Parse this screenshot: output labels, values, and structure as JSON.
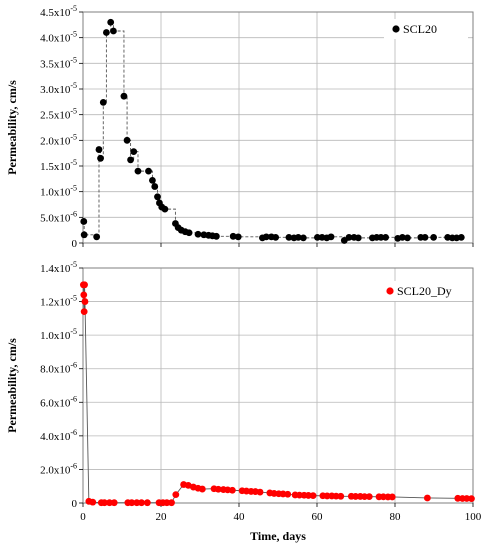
{
  "chart_data": [
    {
      "type": "scatter",
      "grid": true,
      "legend_position": "top-right",
      "ylabel": "Permeability, cm/s",
      "xlabel": "",
      "xlim": [
        0,
        100
      ],
      "ylim": [
        0,
        4.5e-05
      ],
      "y_ticks": [
        {
          "value": 0,
          "label": "0"
        },
        {
          "value": 5e-06,
          "label": "5.0x10",
          "exp": "-6"
        },
        {
          "value": 1e-05,
          "label": "1.0x10",
          "exp": "-5"
        },
        {
          "value": 1.5e-05,
          "label": "1.5x10",
          "exp": "-5"
        },
        {
          "value": 2e-05,
          "label": "2.0x10",
          "exp": "-5"
        },
        {
          "value": 2.5e-05,
          "label": "2.5x10",
          "exp": "-5"
        },
        {
          "value": 3e-05,
          "label": "3.0x10",
          "exp": "-5"
        },
        {
          "value": 3.5e-05,
          "label": "3.5x10",
          "exp": "-5"
        },
        {
          "value": 4e-05,
          "label": "4.0x10",
          "exp": "-5"
        },
        {
          "value": 4.5e-05,
          "label": "4.5x10",
          "exp": "-5"
        }
      ],
      "x_ticks": [
        0,
        20,
        40,
        60,
        80,
        100
      ],
      "line_style": "dashed-step",
      "series": [
        {
          "name": "SCL20",
          "color": "#000000",
          "x": [
            0.2,
            0.3,
            3.5,
            4.1,
            4.5,
            5.2,
            6.0,
            7.1,
            7.8,
            10.5,
            11.3,
            12.2,
            13.0,
            14.1,
            16.8,
            17.8,
            18.4,
            19.1,
            19.6,
            20.2,
            21.0,
            23.7,
            24.4,
            25.2,
            26.2,
            27.2,
            29.5,
            31.0,
            32.2,
            33.2,
            34.2,
            38.5,
            39.8,
            46.0,
            47.0,
            48.3,
            49.4,
            52.8,
            54.1,
            55.2,
            56.5,
            60.1,
            61.3,
            62.5,
            63.6,
            67.0,
            68.2,
            69.5,
            70.6,
            74.2,
            75.3,
            76.4,
            77.6,
            80.7,
            81.9,
            83.2,
            86.6,
            87.7,
            89.9,
            93.5,
            94.7,
            95.8,
            97.0
          ],
          "y": [
            4.2e-06,
            1.6e-06,
            1.2e-06,
            1.82e-05,
            1.65e-05,
            2.74e-05,
            4.1e-05,
            4.3e-05,
            4.13e-05,
            2.86e-05,
            2e-05,
            1.62e-05,
            1.78e-05,
            1.4e-05,
            1.4e-05,
            1.22e-05,
            1.1e-05,
            9e-06,
            7.8e-06,
            7e-06,
            6.6e-06,
            3.8e-06,
            3e-06,
            2.5e-06,
            2.2e-06,
            2e-06,
            1.7e-06,
            1.6e-06,
            1.5e-06,
            1.4e-06,
            1.3e-06,
            1.3e-06,
            1.2e-06,
            1e-06,
            1.2e-06,
            1.2e-06,
            1.1e-06,
            1.1e-06,
            1e-06,
            1.1e-06,
            1e-06,
            1.1e-06,
            1.1e-06,
            1e-06,
            1.2e-06,
            5e-07,
            1.1e-06,
            1.1e-06,
            1e-06,
            1e-06,
            1.1e-06,
            1.1e-06,
            1.1e-06,
            9e-07,
            1.1e-06,
            1e-06,
            1.1e-06,
            1.1e-06,
            1.1e-06,
            1.1e-06,
            1e-06,
            1e-06,
            1.1e-06
          ]
        }
      ]
    },
    {
      "type": "scatter",
      "grid": true,
      "legend_position": "top-right",
      "ylabel": "Permeability, cm/s",
      "xlabel": "Time, days",
      "xlim": [
        0,
        100
      ],
      "ylim": [
        0,
        1.4e-05
      ],
      "y_ticks": [
        {
          "value": 0,
          "label": "0"
        },
        {
          "value": 2e-06,
          "label": "2.0x10",
          "exp": "-6"
        },
        {
          "value": 4e-06,
          "label": "4.0x10",
          "exp": "-6"
        },
        {
          "value": 6e-06,
          "label": "6.0x10",
          "exp": "-6"
        },
        {
          "value": 8e-06,
          "label": "8.0x10",
          "exp": "-6"
        },
        {
          "value": 1e-05,
          "label": "1.0x10",
          "exp": "-5"
        },
        {
          "value": 1.2e-05,
          "label": "1.2x10",
          "exp": "-5"
        },
        {
          "value": 1.4e-05,
          "label": "1.4x10",
          "exp": "-5"
        }
      ],
      "x_ticks": [
        0,
        20,
        40,
        60,
        80,
        100
      ],
      "line_style": "solid",
      "series": [
        {
          "name": "SCL20_Dy",
          "color": "#ff0000",
          "x": [
            0.1,
            0.2,
            0.3,
            0.4,
            0.5,
            1.5,
            2.5,
            4.7,
            5.5,
            6.8,
            8.0,
            11.5,
            12.5,
            13.8,
            15.0,
            16.5,
            19.5,
            20.5,
            21.5,
            22.7,
            23.8,
            25.8,
            27.0,
            28.3,
            29.5,
            30.6,
            33.6,
            34.7,
            36.0,
            37.1,
            38.3,
            40.8,
            41.9,
            43.1,
            44.2,
            45.4,
            47.9,
            49.0,
            50.2,
            51.3,
            52.5,
            54.4,
            55.5,
            56.7,
            57.8,
            59.0,
            61.5,
            62.6,
            63.8,
            64.9,
            66.1,
            68.8,
            69.9,
            71.1,
            72.2,
            73.4,
            75.9,
            77.0,
            78.2,
            79.3,
            88.3,
            96.1,
            97.3,
            98.4,
            99.6
          ],
          "y": [
            1.3e-05,
            1.24e-05,
            1.14e-05,
            1.3e-05,
            1.2e-05,
            1e-07,
            5e-08,
            2e-08,
            2e-08,
            2e-08,
            2e-08,
            2e-08,
            2e-08,
            2e-08,
            2e-08,
            2e-08,
            2e-08,
            2e-08,
            2e-08,
            2e-08,
            5e-07,
            1.1e-06,
            1.05e-06,
            9.5e-07,
            8.8e-07,
            8.3e-07,
            8.5e-07,
            8.2e-07,
            8e-07,
            7.8e-07,
            7.6e-07,
            7.3e-07,
            7.1e-07,
            6.9e-07,
            6.8e-07,
            6.5e-07,
            6e-07,
            5.7e-07,
            5.5e-07,
            5.4e-07,
            5.2e-07,
            4.8e-07,
            4.7e-07,
            4.6e-07,
            4.5e-07,
            4.4e-07,
            4.3e-07,
            4.2e-07,
            4.2e-07,
            4.1e-07,
            4e-07,
            4e-07,
            3.9e-07,
            3.9e-07,
            3.8e-07,
            3.8e-07,
            3.7e-07,
            3.7e-07,
            3.6e-07,
            3.6e-07,
            3e-07,
            2.8e-07,
            2.7e-07,
            2.7e-07,
            2.6e-07
          ]
        }
      ]
    }
  ]
}
